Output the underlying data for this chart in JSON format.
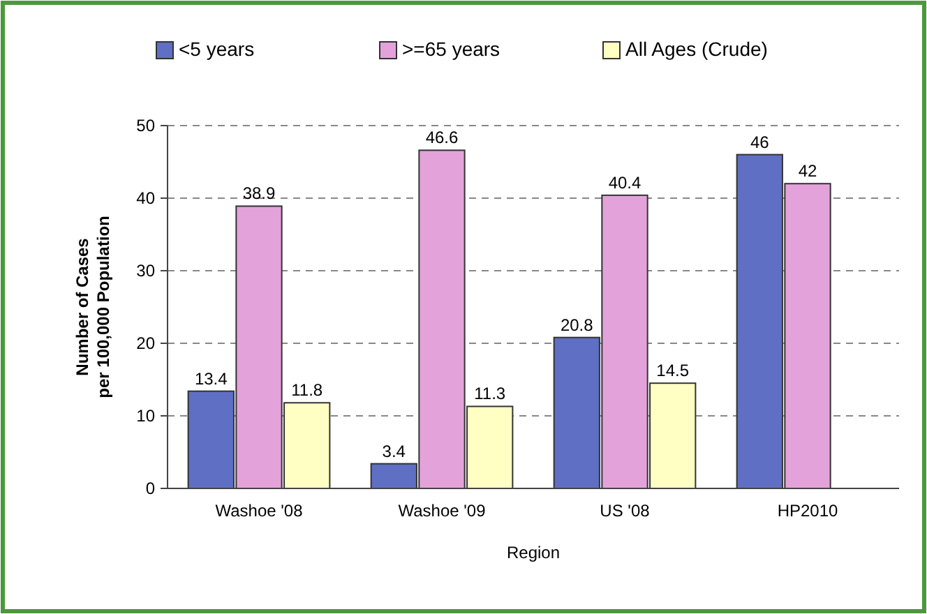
{
  "chart_data": {
    "type": "bar",
    "xlabel": "Region",
    "ylabel": "Number of Cases per 100,000 Population",
    "categories": [
      "Washoe '08",
      "Washoe '09",
      "US '08",
      "HP2010"
    ],
    "series": [
      {
        "name": "<5 years",
        "color": "#5f6fc4",
        "values": [
          13.4,
          3.4,
          20.8,
          46
        ]
      },
      {
        "name": ">=65 years",
        "color": "#e4a2da",
        "values": [
          38.9,
          46.6,
          40.4,
          42
        ]
      },
      {
        "name": "All Ages (Crude)",
        "color": "#ffffc4",
        "values": [
          11.8,
          11.3,
          14.5,
          null
        ]
      }
    ],
    "ylim": [
      0,
      50
    ],
    "yticks": [
      0,
      10,
      20,
      30,
      40,
      50
    ],
    "grid": "y",
    "legend": "top",
    "data_labels": true
  }
}
